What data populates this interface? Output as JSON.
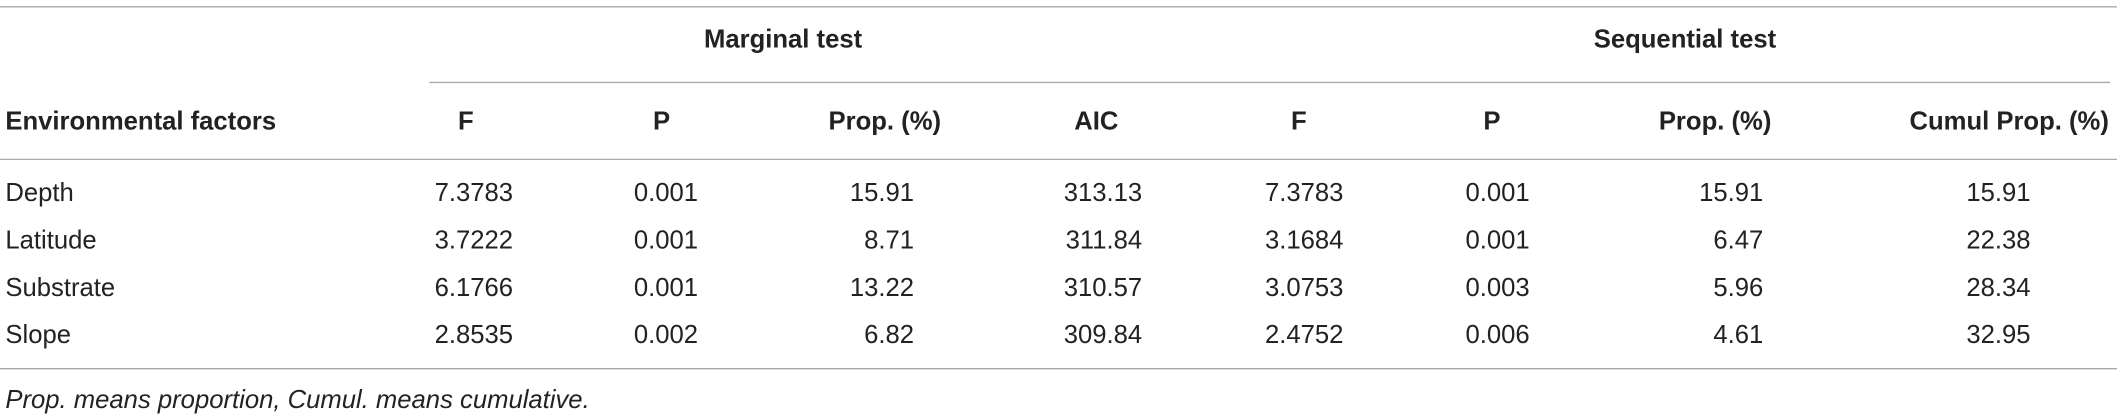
{
  "table": {
    "groups": [
      "Marginal test",
      "Sequential test"
    ],
    "columns": [
      "Environmental factors",
      "F",
      "P",
      "Prop. (%)",
      "AIC",
      "F",
      "P",
      "Prop. (%)",
      "Cumul Prop. (%)"
    ],
    "rows": [
      [
        "Depth",
        7.3783,
        0.001,
        15.91,
        313.13,
        7.3783,
        0.001,
        15.91,
        15.91
      ],
      [
        "Latitude",
        3.7222,
        0.001,
        8.71,
        311.84,
        3.1684,
        0.001,
        6.47,
        22.38
      ],
      [
        "Substrate",
        6.1766,
        0.001,
        13.22,
        310.57,
        3.0753,
        0.003,
        5.96,
        28.34
      ],
      [
        "Slope",
        2.8535,
        0.002,
        6.82,
        309.84,
        2.4752,
        0.006,
        4.61,
        32.95
      ]
    ]
  },
  "footnote": "Prop. means proportion, Cumul. means cumulative."
}
